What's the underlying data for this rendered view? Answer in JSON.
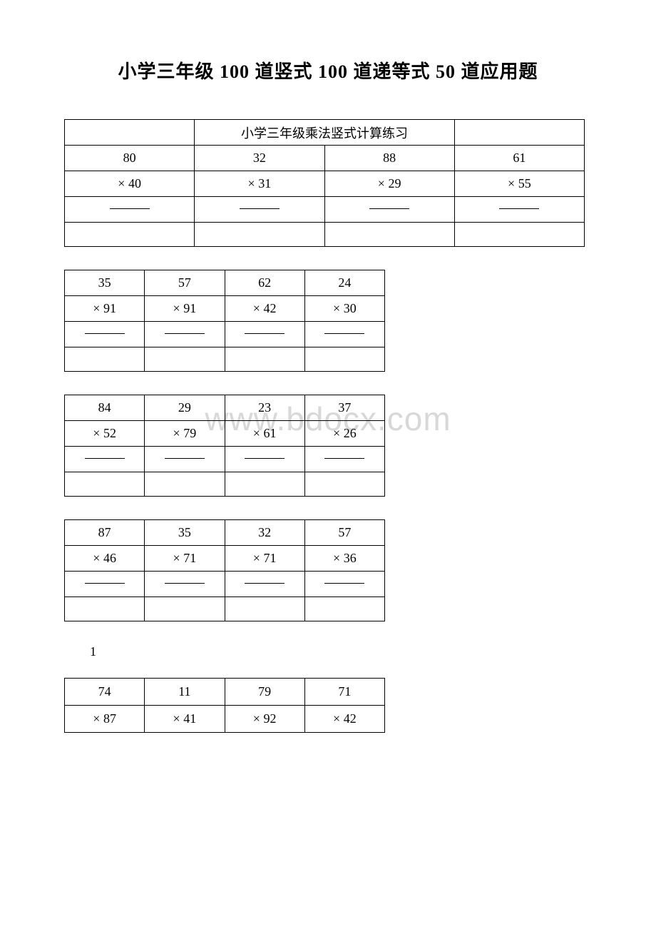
{
  "title": "小学三年级 100 道竖式 100 道递等式 50 道应用题",
  "watermark": "www.bdocx.com",
  "page_number": "1",
  "table1": {
    "header": "小学三年级乘法竖式计算练习",
    "row1": [
      "80",
      "32",
      "88",
      "61"
    ],
    "row2": [
      "× 40",
      "× 31",
      "× 29",
      "× 55"
    ]
  },
  "tables": [
    {
      "row1": [
        "35",
        "57",
        "62",
        "24"
      ],
      "row2": [
        "× 91",
        "× 91",
        "× 42",
        "× 30"
      ]
    },
    {
      "row1": [
        "84",
        "29",
        "23",
        "37"
      ],
      "row2": [
        "× 52",
        "× 79",
        "× 61",
        "× 26"
      ]
    },
    {
      "row1": [
        "87",
        "35",
        "32",
        "57"
      ],
      "row2": [
        "× 46",
        "× 71",
        "× 71",
        "× 36"
      ]
    },
    {
      "row1": [
        "74",
        "11",
        "79",
        "71"
      ],
      "row2": [
        "× 87",
        "× 41",
        "× 92",
        "× 42"
      ]
    }
  ]
}
